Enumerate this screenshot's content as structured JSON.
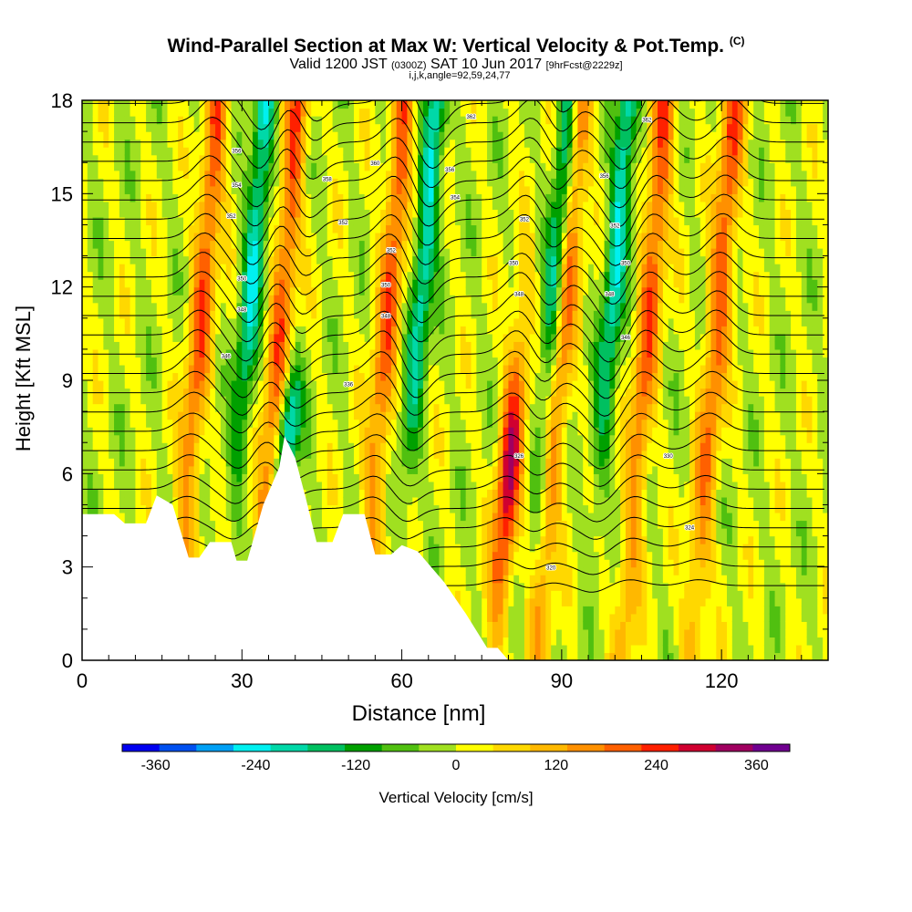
{
  "header": {
    "title": "Wind-Parallel Section at Max W: Vertical Velocity & Pot.Temp.",
    "copyright": "(C)",
    "valid_prefix": "Valid 1200 JST",
    "valid_utc": "(0300Z)",
    "valid_date": "SAT 10 Jun 2017",
    "forecast": "[9hrFcst@2229z]",
    "params": "i,j,k,angle=92,59,24,77"
  },
  "chart_data": {
    "type": "heatmap",
    "title": "Wind-Parallel Section at Max W: Vertical Velocity & Pot.Temp.",
    "xlabel": "Distance [nm]",
    "ylabel": "Height [Kft MSL]",
    "xlim": [
      0,
      140
    ],
    "ylim": [
      0,
      18
    ],
    "x_ticks": [
      0,
      30,
      60,
      90,
      120
    ],
    "y_ticks": [
      0,
      3,
      6,
      9,
      12,
      15,
      18
    ],
    "colorbar": {
      "label": "Vertical Velocity [cm/s]",
      "ticks": [
        -360,
        -240,
        -120,
        0,
        120,
        240,
        360
      ],
      "colors": [
        "#0000f0",
        "#0050f0",
        "#00a0f5",
        "#00f0f0",
        "#00d8a8",
        "#00c060",
        "#00a000",
        "#50c010",
        "#a0e020",
        "#ffff00",
        "#ffd800",
        "#ffb800",
        "#ff9000",
        "#ff6000",
        "#ff2000",
        "#d00030",
        "#a00060",
        "#700090"
      ]
    },
    "terrain": [
      [
        0,
        4.7
      ],
      [
        6,
        4.7
      ],
      [
        8,
        4.4
      ],
      [
        12,
        4.4
      ],
      [
        14,
        5.3
      ],
      [
        17,
        5.0
      ],
      [
        20,
        3.3
      ],
      [
        22,
        3.3
      ],
      [
        24,
        3.8
      ],
      [
        28,
        3.8
      ],
      [
        29,
        3.2
      ],
      [
        31,
        3.2
      ],
      [
        34,
        5.0
      ],
      [
        37,
        6.2
      ],
      [
        38,
        7.2
      ],
      [
        40,
        6.5
      ],
      [
        42,
        5.2
      ],
      [
        44,
        3.8
      ],
      [
        47,
        3.8
      ],
      [
        49,
        4.7
      ],
      [
        53,
        4.7
      ],
      [
        55,
        3.4
      ],
      [
        58,
        3.4
      ],
      [
        60,
        3.7
      ],
      [
        63,
        3.5
      ],
      [
        68,
        2.5
      ],
      [
        72,
        1.5
      ],
      [
        76,
        0.4
      ],
      [
        78,
        0.4
      ],
      [
        80,
        0.0
      ]
    ],
    "updraft_centers_nm": [
      21,
      36,
      56,
      81,
      89,
      105,
      118
    ],
    "downdraft_centers_nm": [
      30,
      39,
      62,
      87,
      98
    ],
    "theta_contour_labels": [
      {
        "x": 29,
        "y": 16.4,
        "text": "356"
      },
      {
        "x": 29,
        "y": 15.3,
        "text": "354"
      },
      {
        "x": 28,
        "y": 14.3,
        "text": "352"
      },
      {
        "x": 30,
        "y": 12.3,
        "text": "350"
      },
      {
        "x": 30,
        "y": 11.3,
        "text": "348"
      },
      {
        "x": 27,
        "y": 9.8,
        "text": "346"
      },
      {
        "x": 50,
        "y": 8.9,
        "text": "336"
      },
      {
        "x": 82,
        "y": 6.6,
        "text": "326"
      },
      {
        "x": 88,
        "y": 3.0,
        "text": "320"
      },
      {
        "x": 55,
        "y": 16.0,
        "text": "360"
      },
      {
        "x": 58,
        "y": 13.2,
        "text": "352"
      },
      {
        "x": 57,
        "y": 12.1,
        "text": "350"
      },
      {
        "x": 57,
        "y": 11.1,
        "text": "348"
      },
      {
        "x": 73,
        "y": 17.5,
        "text": "362"
      },
      {
        "x": 69,
        "y": 15.8,
        "text": "356"
      },
      {
        "x": 70,
        "y": 14.9,
        "text": "354"
      },
      {
        "x": 83,
        "y": 14.2,
        "text": "352"
      },
      {
        "x": 81,
        "y": 12.8,
        "text": "350"
      },
      {
        "x": 82,
        "y": 11.8,
        "text": "348"
      },
      {
        "x": 98,
        "y": 15.6,
        "text": "356"
      },
      {
        "x": 100,
        "y": 14.0,
        "text": "352"
      },
      {
        "x": 102,
        "y": 12.8,
        "text": "350"
      },
      {
        "x": 99,
        "y": 11.8,
        "text": "348"
      },
      {
        "x": 102,
        "y": 10.4,
        "text": "346"
      },
      {
        "x": 106,
        "y": 17.4,
        "text": "362"
      },
      {
        "x": 110,
        "y": 6.6,
        "text": "330"
      },
      {
        "x": 114,
        "y": 4.3,
        "text": "324"
      },
      {
        "x": 46,
        "y": 15.5,
        "text": "358"
      },
      {
        "x": 49,
        "y": 14.1,
        "text": "352"
      }
    ]
  }
}
